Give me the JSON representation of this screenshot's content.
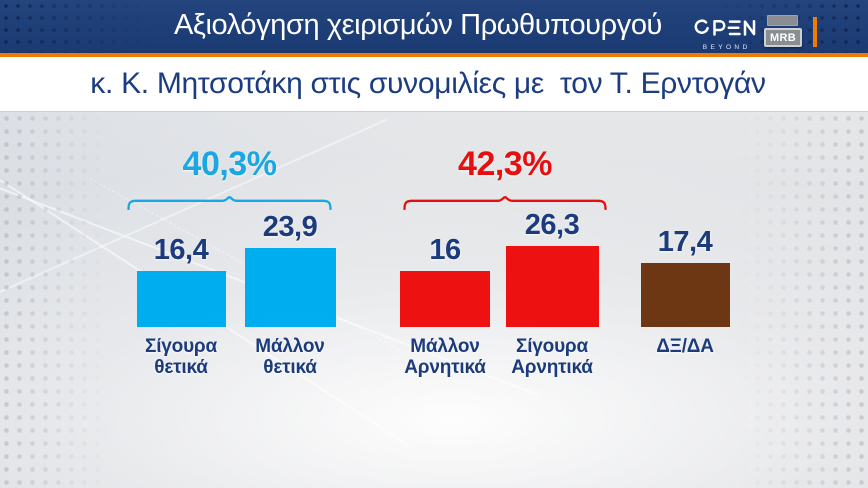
{
  "header": {
    "title": "Αξιολόγηση χειρισμών Πρωθυπουργού",
    "channel": {
      "name": "OPEN",
      "tagline": "BEYOND"
    },
    "agency": "MRB"
  },
  "subtitle": "κ. Κ. Μητσοτάκη στις συνομιλίες με  τον Τ. Ερντογάν",
  "colors": {
    "header_navy": "#1e3e78",
    "orange": "#ef7c00",
    "text_navy": "#1c3b7c",
    "positive_cyan": "#00aeef",
    "negative_red": "#ee1111",
    "unknown_brown": "#6e3714",
    "pct_cyan": "#1ba7e3",
    "pct_red": "#e60f0f",
    "panel_gray": "#dfe1e4"
  },
  "chart_data": {
    "type": "bar",
    "title": "Αξιολόγηση χειρισμών Πρωθυπουργού κ. Κ. Μητσοτάκη στις συνομιλίες με τον Τ. Ερντογάν",
    "unit": "%",
    "categories": [
      "Σίγουρα θετικά",
      "Μάλλον θετικά",
      "Μάλλον Αρνητικά",
      "Σίγουρα Αρνητικά",
      "ΔΞ/ΔΑ"
    ],
    "categories_lines": [
      [
        "Σίγουρα",
        "θετικά"
      ],
      [
        "Μάλλον",
        "θετικά"
      ],
      [
        "Μάλλον",
        "Αρνητικά"
      ],
      [
        "Σίγουρα",
        "Αρνητικά"
      ],
      [
        "ΔΞ/ΔΑ"
      ]
    ],
    "values": [
      16.4,
      23.9,
      16,
      26.3,
      17.4
    ],
    "value_labels": [
      "16,4",
      "23,9",
      "16",
      "26,3",
      "17,4"
    ],
    "bar_colors": [
      "#00aeef",
      "#00aeef",
      "#ee1111",
      "#ee1111",
      "#6e3714"
    ],
    "ylim": [
      0,
      30
    ],
    "grid": false,
    "legend": false,
    "groups": [
      {
        "label": "40,3%",
        "total": 40.3,
        "color": "#1ba7e3",
        "bars": [
          0,
          1
        ]
      },
      {
        "label": "42,3%",
        "total": 42.3,
        "color": "#e60f0f",
        "bars": [
          2,
          3
        ]
      }
    ]
  }
}
